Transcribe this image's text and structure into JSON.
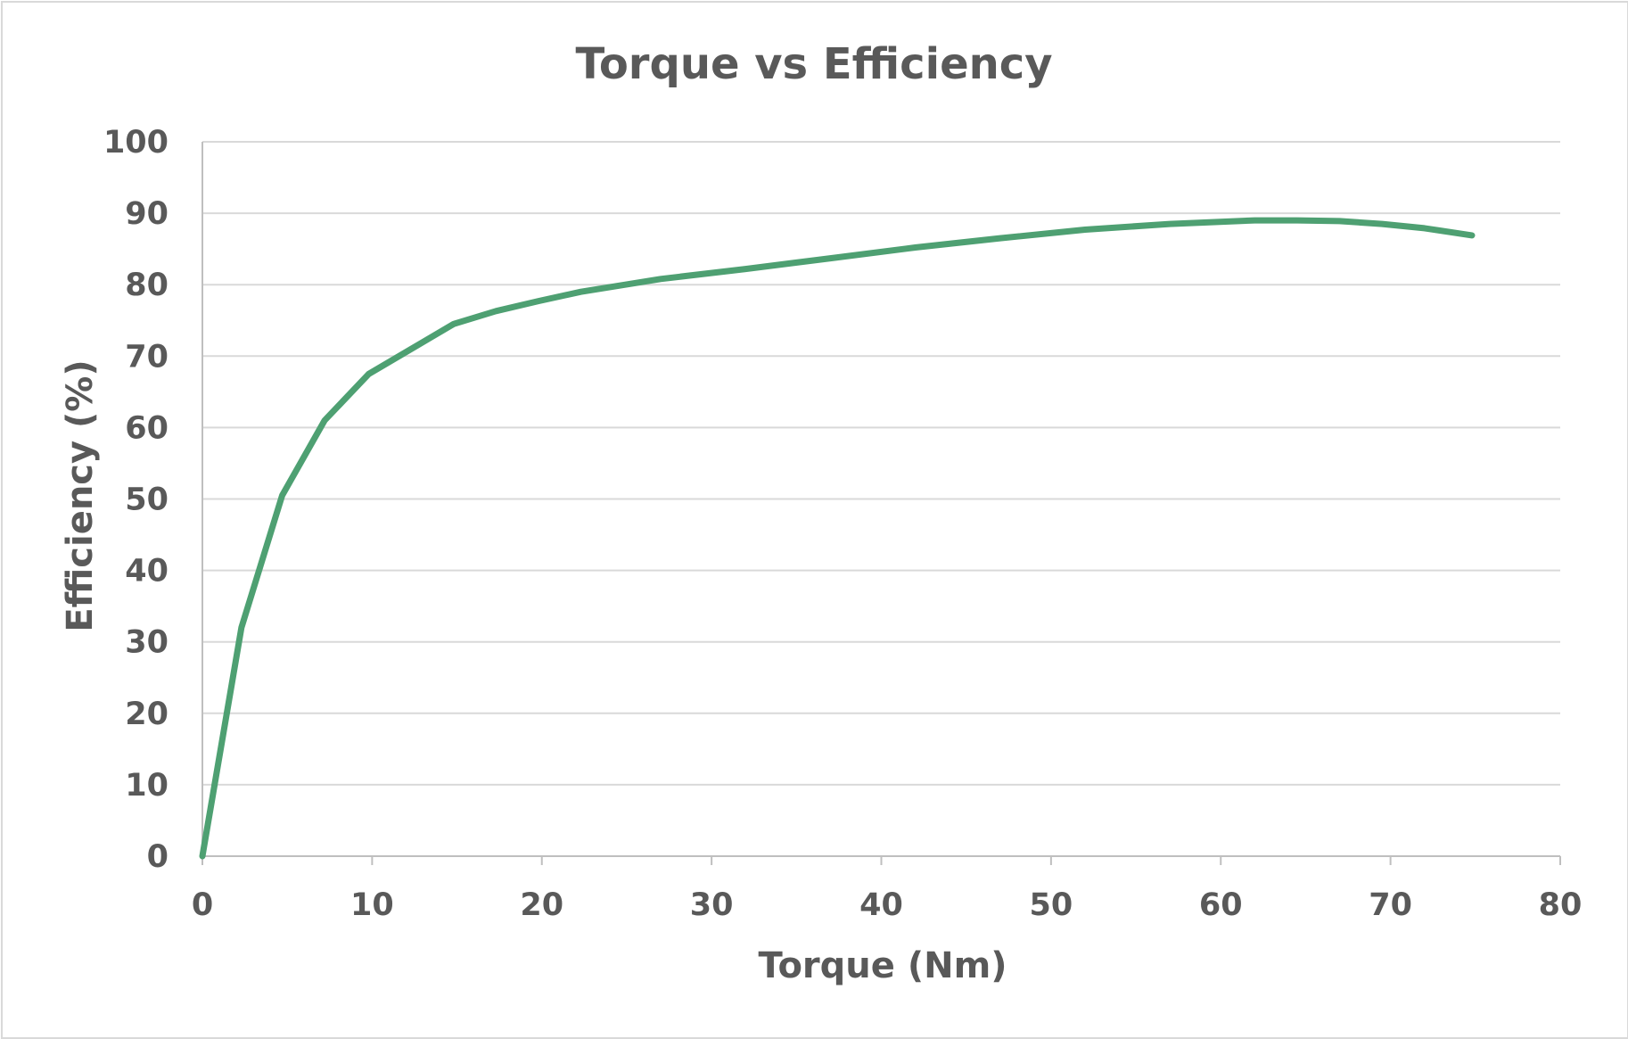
{
  "chart_data": {
    "type": "line",
    "title": "Torque vs Efficiency",
    "xlabel": "Torque (Nm)",
    "ylabel": "Efficiency (%)",
    "xlim": [
      0,
      80
    ],
    "ylim": [
      0,
      100
    ],
    "x_ticks": [
      0,
      10,
      20,
      30,
      40,
      50,
      60,
      70,
      80
    ],
    "y_ticks": [
      0,
      10,
      20,
      30,
      40,
      50,
      60,
      70,
      80,
      90,
      100
    ],
    "grid": true,
    "legend": "none",
    "series": [
      {
        "color": "#4ea072",
        "x": [
          0,
          2.3,
          4.7,
          7.2,
          9.8,
          12.3,
          14.8,
          17.3,
          19.8,
          22.3,
          27,
          32,
          37,
          42,
          47,
          52,
          57,
          62,
          64.5,
          67,
          69.5,
          72,
          74.8
        ],
        "y": [
          0,
          32,
          50.5,
          61,
          67.5,
          71,
          74.5,
          76.3,
          77.7,
          79,
          80.8,
          82.2,
          83.7,
          85.2,
          86.5,
          87.7,
          88.5,
          89,
          89,
          88.9,
          88.5,
          87.9,
          86.9
        ]
      }
    ]
  }
}
